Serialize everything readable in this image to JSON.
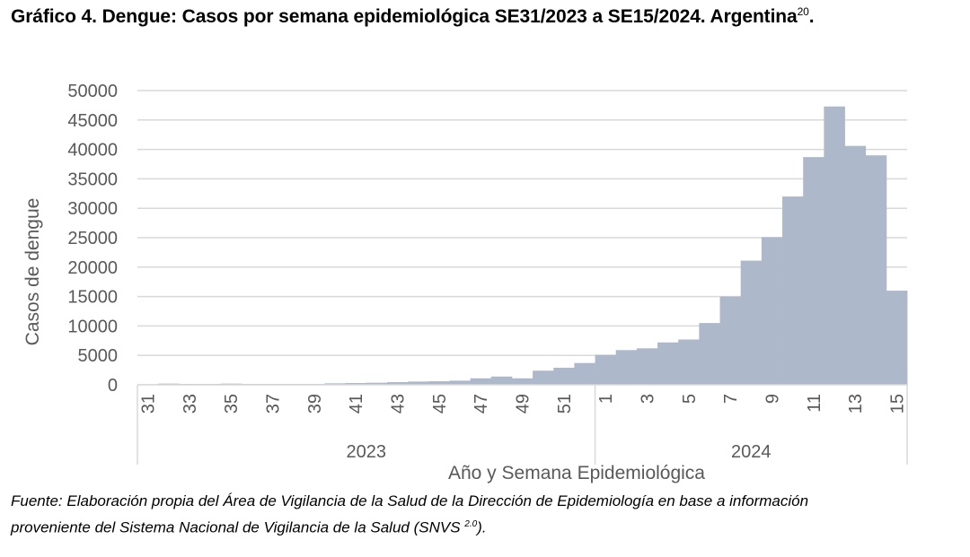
{
  "header": {
    "title": "Gráfico 4. Dengue: Casos por semana epidemiológica SE31/2023 a SE15/2024. Argentina",
    "title_sup": "20",
    "title_end": "."
  },
  "chart_data": {
    "type": "bar",
    "xlabel": "Año y Semana Epidemiológica",
    "ylabel": "Casos de dengue",
    "ylim": [
      0,
      50000
    ],
    "yticks": [
      0,
      5000,
      10000,
      15000,
      20000,
      25000,
      30000,
      35000,
      40000,
      45000,
      50000
    ],
    "grid": true,
    "bar_color": "#adb9ca",
    "groups": [
      {
        "year": "2023",
        "weeks": [
          31,
          32,
          33,
          34,
          35,
          36,
          37,
          38,
          39,
          40,
          41,
          42,
          43,
          44,
          45,
          46,
          47,
          48,
          49,
          50,
          51,
          52
        ],
        "tick_labels": [
          "31",
          "33",
          "35",
          "37",
          "39",
          "41",
          "43",
          "45",
          "47",
          "49",
          "51"
        ],
        "values": [
          100,
          200,
          150,
          150,
          200,
          150,
          150,
          150,
          150,
          250,
          300,
          350,
          450,
          550,
          600,
          700,
          1100,
          1400,
          1100,
          2400,
          2900,
          3700
        ]
      },
      {
        "year": "2024",
        "weeks": [
          1,
          2,
          3,
          4,
          5,
          6,
          7,
          8,
          9,
          10,
          11,
          12,
          13,
          14,
          15
        ],
        "tick_labels": [
          "1",
          "3",
          "5",
          "7",
          "9",
          "11",
          "13",
          "15"
        ],
        "values": [
          5100,
          5900,
          6200,
          7200,
          7700,
          10500,
          15000,
          21100,
          25100,
          32000,
          38700,
          47300,
          40600,
          39000,
          16000
        ]
      }
    ]
  },
  "footer": {
    "source_line1": "Fuente: Elaboración propia del Área de Vigilancia de la Salud de la Dirección de Epidemiología en base a información",
    "source_line2_pre": "proveniente del Sistema Nacional de Vigilancia de la Salud (SNVS ",
    "source_sup": "2.0",
    "source_line2_post": ")."
  }
}
